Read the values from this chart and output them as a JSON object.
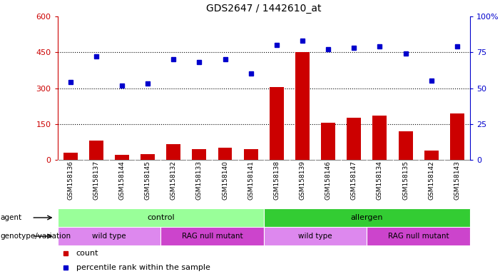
{
  "title": "GDS2647 / 1442610_at",
  "samples": [
    "GSM158136",
    "GSM158137",
    "GSM158144",
    "GSM158145",
    "GSM158132",
    "GSM158133",
    "GSM158140",
    "GSM158141",
    "GSM158138",
    "GSM158139",
    "GSM158146",
    "GSM158147",
    "GSM158134",
    "GSM158135",
    "GSM158142",
    "GSM158143"
  ],
  "counts": [
    30,
    80,
    20,
    25,
    65,
    45,
    50,
    45,
    305,
    450,
    155,
    175,
    185,
    120,
    40,
    195
  ],
  "percentiles": [
    54,
    72,
    52,
    53,
    70,
    68,
    70,
    60,
    80,
    83,
    77,
    78,
    79,
    74,
    55,
    79
  ],
  "ylim_left": [
    0,
    600
  ],
  "ylim_right": [
    0,
    100
  ],
  "yticks_left": [
    0,
    150,
    300,
    450,
    600
  ],
  "yticks_right": [
    0,
    25,
    50,
    75,
    100
  ],
  "bar_color": "#cc0000",
  "dot_color": "#0000cc",
  "background_color": "#ffffff",
  "agent_control_color": "#99ff99",
  "agent_allergen_color": "#33cc33",
  "genotype_wt_color": "#dd88ee",
  "genotype_rag_color": "#cc44cc",
  "agent_control_label": "control",
  "agent_allergen_label": "allergen",
  "genotype_wt_label": "wild type",
  "genotype_rag_label": "RAG null mutant",
  "agent_row_label": "agent",
  "genotype_row_label": "genotype/variation",
  "legend_count_label": "count",
  "legend_percentile_label": "percentile rank within the sample",
  "tick_bg_color": "#cccccc",
  "right_yaxis_color": "#0000cc",
  "left_yaxis_color": "#cc0000",
  "figsize": [
    7.01,
    3.84
  ],
  "dpi": 100
}
